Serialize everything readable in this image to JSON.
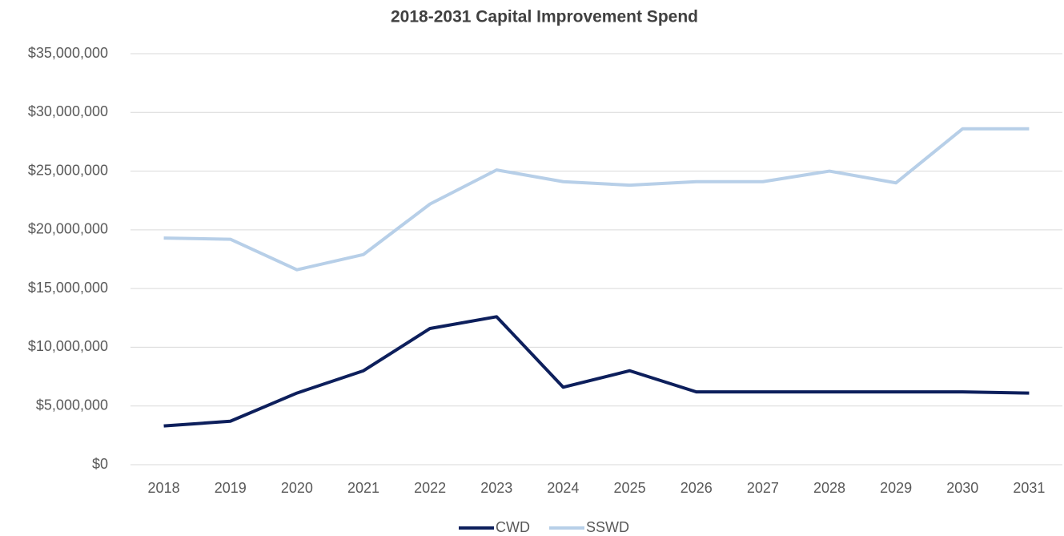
{
  "chart_data": {
    "type": "line",
    "title": "2018-2031 Capital Improvement Spend",
    "categories": [
      "2018",
      "2019",
      "2020",
      "2021",
      "2022",
      "2023",
      "2024",
      "2025",
      "2026",
      "2027",
      "2028",
      "2029",
      "2030",
      "2031"
    ],
    "series": [
      {
        "name": "CWD",
        "color": "#0d1f5c",
        "values": [
          3300000,
          3700000,
          6100000,
          8000000,
          11600000,
          12600000,
          6600000,
          8000000,
          6200000,
          6200000,
          6200000,
          6200000,
          6200000,
          6100000
        ]
      },
      {
        "name": "SSWD",
        "color": "#b7cfe8",
        "values": [
          19300000,
          19200000,
          16600000,
          17900000,
          22200000,
          25100000,
          24100000,
          23800000,
          24100000,
          24100000,
          25000000,
          24000000,
          28600000,
          28600000
        ]
      }
    ],
    "ylim": [
      0,
      35000000
    ],
    "yticks": [
      {
        "value": 0,
        "label": "$0"
      },
      {
        "value": 5000000,
        "label": "$5,000,000"
      },
      {
        "value": 10000000,
        "label": "$10,000,000"
      },
      {
        "value": 15000000,
        "label": "$15,000,000"
      },
      {
        "value": 20000000,
        "label": "$20,000,000"
      },
      {
        "value": 25000000,
        "label": "$25,000,000"
      },
      {
        "value": 30000000,
        "label": "$30,000,000"
      },
      {
        "value": 35000000,
        "label": "$35,000,000"
      }
    ],
    "grid": true,
    "legend": "bottom"
  }
}
